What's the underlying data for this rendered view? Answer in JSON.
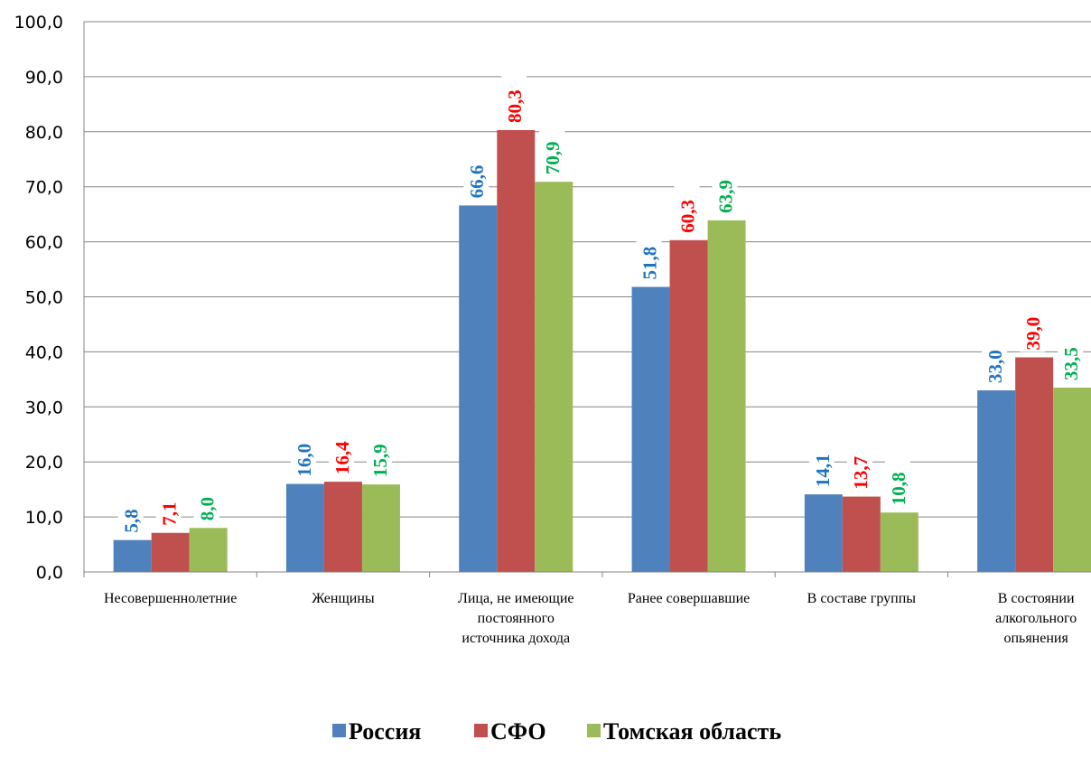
{
  "chart_data": {
    "type": "bar",
    "categories": [
      [
        "Несовершеннолетние"
      ],
      [
        "Женщины"
      ],
      [
        "Лица, не имеющие",
        "постоянного",
        "источника дохода"
      ],
      [
        "Ранее совершавшие"
      ],
      [
        "В составе группы"
      ],
      [
        "В состоянии",
        "алкогольного",
        "опьянения"
      ]
    ],
    "series": [
      {
        "name": "Россия",
        "color": "#4f81bd",
        "label_color": "#1f73c0",
        "values": [
          5.8,
          16.0,
          66.6,
          51.8,
          14.1,
          33.0
        ],
        "labels": [
          "5,8",
          "16,0",
          "66,6",
          "51,8",
          "14,1",
          "33,0"
        ]
      },
      {
        "name": "СФО",
        "color": "#c0504d",
        "label_color": "#ff0000",
        "values": [
          7.1,
          16.4,
          80.3,
          60.3,
          13.7,
          39.0
        ],
        "labels": [
          "7,1",
          "16,4",
          "80,3",
          "60,3",
          "13,7",
          "39,0"
        ]
      },
      {
        "name": "Томская область",
        "color": "#9bbb59",
        "label_color": "#00b050",
        "values": [
          8.0,
          15.9,
          70.9,
          63.9,
          10.8,
          33.5
        ],
        "labels": [
          "8,0",
          "15,9",
          "70,9",
          "63,9",
          "10,8",
          "33,5"
        ]
      }
    ],
    "y_ticks": [
      "0,0",
      "10,0",
      "20,0",
      "30,0",
      "40,0",
      "50,0",
      "60,0",
      "70,0",
      "80,0",
      "90,0",
      "100,0"
    ],
    "ylim": [
      0,
      100
    ],
    "grid": true,
    "legend_position": "bottom"
  }
}
